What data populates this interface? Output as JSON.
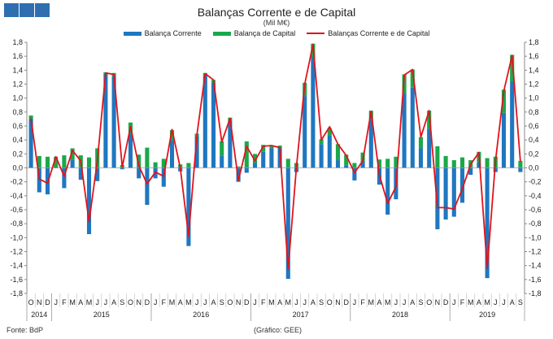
{
  "header": {
    "title": "Balanças Corrente e de Capital",
    "subtitle": "(Mil M€)"
  },
  "legend": {
    "current": "Balança Corrente",
    "capital": "Balança de Capital",
    "combined": "Balanças Corrente e de Capital"
  },
  "footer": {
    "source": "Fonte: BdP",
    "credit": "(Gráfico: GEE)"
  },
  "colors": {
    "current": "#1f77c0",
    "capital": "#1aa84a",
    "combined": "#e0141c",
    "logo": "#2f6fb0"
  },
  "chart_data": {
    "type": "bar",
    "title": "Balanças Corrente e de Capital",
    "subtitle": "(Mil M€)",
    "ylim": [
      -1.8,
      1.8
    ],
    "yticks": [
      "1,8",
      "1,6",
      "1,4",
      "1,2",
      "1,0",
      "0,8",
      "0,6",
      "0,4",
      "0,2",
      "0,0",
      "-0,2",
      "-0,4",
      "-0,6",
      "-0,8",
      "-1,0",
      "-1,2",
      "-1,4",
      "-1,6",
      "-1,8"
    ],
    "categories": [
      "O",
      "N",
      "D",
      "J",
      "F",
      "M",
      "A",
      "M",
      "J",
      "J",
      "A",
      "S",
      "O",
      "N",
      "D",
      "J",
      "F",
      "M",
      "A",
      "M",
      "J",
      "J",
      "A",
      "S",
      "O",
      "N",
      "D",
      "J",
      "F",
      "M",
      "A",
      "M",
      "J",
      "J",
      "A",
      "S",
      "O",
      "N",
      "D",
      "J",
      "F",
      "M",
      "A",
      "M",
      "J",
      "J",
      "A",
      "S",
      "O",
      "N",
      "D",
      "J",
      "F",
      "M",
      "A",
      "M",
      "J",
      "J",
      "A",
      "S"
    ],
    "year_labels": [
      {
        "label": "2014",
        "from": 0,
        "to": 2
      },
      {
        "label": "2015",
        "from": 3,
        "to": 14
      },
      {
        "label": "2016",
        "from": 15,
        "to": 26
      },
      {
        "label": "2017",
        "from": 27,
        "to": 38
      },
      {
        "label": "2018",
        "from": 39,
        "to": 50
      },
      {
        "label": "2019",
        "from": 51,
        "to": 59
      }
    ],
    "series": [
      {
        "name": "Balança Corrente",
        "type": "bar",
        "values": [
          0.7,
          -0.35,
          -0.38,
          0.0,
          -0.29,
          0.12,
          -0.17,
          -0.95,
          -0.19,
          1.34,
          1.31,
          -0.02,
          0.49,
          -0.15,
          -0.53,
          -0.15,
          -0.27,
          0.39,
          -0.05,
          -1.12,
          0.45,
          1.33,
          1.22,
          0.17,
          0.68,
          -0.2,
          -0.07,
          0.07,
          0.23,
          0.28,
          0.28,
          -1.59,
          -0.06,
          1.03,
          1.59,
          0.34,
          0.47,
          0.11,
          0.03,
          -0.18,
          0.1,
          0.69,
          -0.24,
          -0.67,
          -0.45,
          1.06,
          1.15,
          0.28,
          0.56,
          -0.88,
          -0.74,
          -0.7,
          -0.5,
          -0.1,
          0.08,
          -1.58,
          -0.06,
          0.79,
          1.24,
          -0.06
        ]
      },
      {
        "name": "Balança de Capital",
        "type": "bar",
        "values": [
          0.05,
          0.17,
          0.16,
          0.16,
          0.18,
          0.16,
          0.18,
          0.15,
          0.28,
          0.03,
          0.05,
          0.04,
          0.16,
          0.19,
          0.29,
          0.08,
          0.13,
          0.15,
          0.05,
          0.07,
          0.04,
          0.03,
          0.04,
          0.21,
          0.04,
          0.02,
          0.38,
          0.13,
          0.1,
          0.03,
          0.04,
          0.13,
          0.07,
          0.19,
          0.19,
          0.07,
          0.1,
          0.23,
          0.16,
          0.07,
          0.12,
          0.13,
          0.12,
          0.13,
          0.16,
          0.28,
          0.26,
          0.16,
          0.26,
          0.31,
          0.17,
          0.11,
          0.15,
          0.11,
          0.15,
          0.14,
          0.16,
          0.33,
          0.38,
          0.1
        ]
      },
      {
        "name": "Balanças Corrente e de Capital",
        "type": "line",
        "values": [
          0.71,
          -0.16,
          -0.22,
          0.16,
          -0.12,
          0.25,
          0.1,
          -0.77,
          0.1,
          1.36,
          1.34,
          0.01,
          0.59,
          0.03,
          -0.23,
          -0.06,
          -0.12,
          0.55,
          0.0,
          -0.98,
          0.47,
          1.35,
          1.26,
          0.37,
          0.71,
          -0.18,
          0.31,
          0.1,
          0.31,
          0.32,
          0.29,
          -1.45,
          0.01,
          1.2,
          1.77,
          0.4,
          0.59,
          0.34,
          0.18,
          -0.07,
          0.1,
          0.81,
          -0.1,
          -0.51,
          -0.27,
          1.33,
          1.41,
          0.44,
          0.82,
          -0.57,
          -0.57,
          -0.59,
          -0.3,
          0.05,
          0.22,
          -1.44,
          0.1,
          1.1,
          1.61,
          0.09
        ]
      }
    ]
  }
}
